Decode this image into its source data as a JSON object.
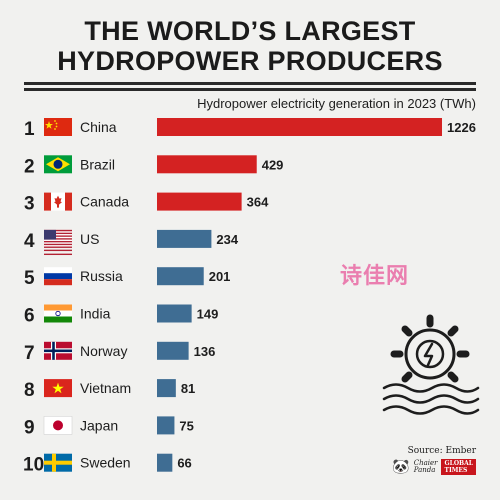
{
  "title_line1": "THE WORLD’S LARGEST",
  "title_line2": "HYDROPOWER PRODUCERS",
  "source": "Source: Ember",
  "watermark": "诗佳网",
  "logo_left": [
    "Chaier",
    "Panda"
  ],
  "logo_right": [
    "GLOBAL",
    "TIMES"
  ],
  "colors": {
    "top3": "#d42222",
    "rest": "#3f6d93",
    "text": "#1d1d1d"
  },
  "chart_data": {
    "type": "bar",
    "orientation": "horizontal",
    "title": "THE WORLD’S LARGEST HYDROPOWER PRODUCERS",
    "subtitle": "Hydropower electricity generation in 2023 (TWh)",
    "ranks": [
      "1",
      "2",
      "3",
      "4",
      "5",
      "6",
      "7",
      "8",
      "9",
      "10"
    ],
    "categories": [
      "China",
      "Brazil",
      "Canada",
      "US",
      "Russia",
      "India",
      "Norway",
      "Vietnam",
      "Japan",
      "Sweden"
    ],
    "flag_icons": [
      "china-flag-icon",
      "brazil-flag-icon",
      "canada-flag-icon",
      "us-flag-icon",
      "russia-flag-icon",
      "india-flag-icon",
      "norway-flag-icon",
      "vietnam-flag-icon",
      "japan-flag-icon",
      "sweden-flag-icon"
    ],
    "values": [
      1226,
      429,
      364,
      234,
      201,
      149,
      136,
      81,
      75,
      66
    ],
    "value_labels": [
      "1226",
      "429",
      "364",
      "234",
      "201",
      "149",
      "136",
      "81",
      "75",
      "66"
    ],
    "highlighted_top": 3,
    "xlim": [
      0,
      1226
    ],
    "grid": false,
    "legend": "none"
  }
}
